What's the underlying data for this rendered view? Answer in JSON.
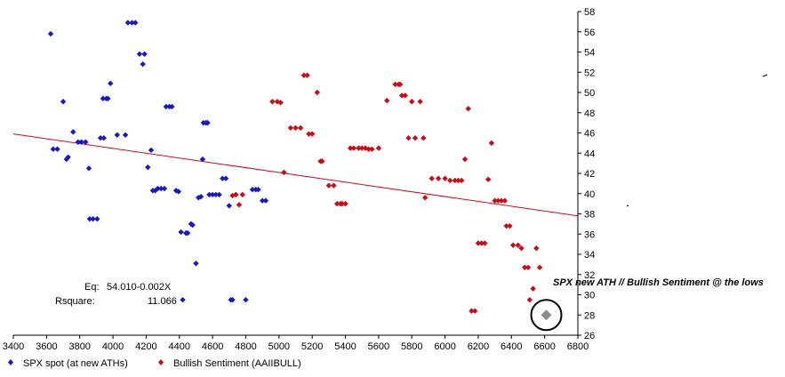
{
  "chart_data": {
    "type": "scatter",
    "x_axis": {
      "min": 3400,
      "max": 6800,
      "step": 200,
      "ticks": [
        "3400",
        "3600",
        "3800",
        "4000",
        "4200",
        "4400",
        "4600",
        "4800",
        "5000",
        "5200",
        "5400",
        "5600",
        "5800",
        "6000",
        "6200",
        "6400",
        "6600",
        "6800"
      ]
    },
    "y_axis": {
      "min": 26,
      "max": 58,
      "step": 2,
      "side": "right",
      "ticks": [
        "26",
        "28",
        "30",
        "32",
        "34",
        "36",
        "38",
        "40",
        "42",
        "44",
        "46",
        "48",
        "50",
        "52",
        "54",
        "56",
        "58"
      ]
    },
    "grid": false,
    "legend_placement": "bottom-left",
    "series": [
      {
        "name": "SPX spot (at new ATHs)",
        "color": "#1a1ab8",
        "marker": "diamond",
        "x": [
          3625,
          3640,
          3665,
          3700,
          3720,
          3730,
          3760,
          3790,
          3810,
          3835,
          3855,
          3860,
          3880,
          3905,
          3925,
          3940,
          3945,
          3960,
          3970,
          3985,
          4025,
          4075,
          4090,
          4115,
          4135,
          4160,
          4180,
          4190,
          4210,
          4230,
          4240,
          4255,
          4270,
          4290,
          4310,
          4320,
          4340,
          4355,
          4380,
          4395,
          4410,
          4420,
          4440,
          4450,
          4470,
          4480,
          4500,
          4515,
          4530,
          4540,
          4545,
          4560,
          4570,
          4580,
          4600,
          4620,
          4640,
          4660,
          4680,
          4700,
          4710,
          4720,
          4740,
          4800,
          4840,
          4860,
          4875,
          4900,
          4920
        ],
        "y": [
          55.8,
          44.4,
          44.4,
          49.1,
          43.4,
          43.6,
          46.1,
          45.1,
          45.1,
          45.1,
          42.5,
          37.5,
          37.5,
          37.5,
          45.5,
          49.4,
          45.5,
          49.4,
          49.4,
          50.9,
          45.8,
          45.8,
          56.9,
          56.9,
          56.9,
          53.8,
          52.8,
          53.8,
          42.6,
          44.3,
          40.3,
          40.3,
          40.5,
          40.5,
          40.5,
          48.6,
          48.6,
          48.6,
          40.3,
          40.2,
          36.2,
          29.5,
          36.1,
          36.1,
          37.0,
          36.9,
          33.1,
          39.6,
          39.7,
          43.4,
          47.0,
          47.0,
          47.0,
          39.9,
          39.9,
          39.9,
          39.9,
          41.5,
          41.5,
          38.8,
          29.5,
          29.5,
          39.9,
          29.5,
          40.4,
          40.4,
          40.4,
          39.3,
          39.3
        ]
      },
      {
        "name": "Bullish Sentiment (AAIIBULL)",
        "color": "#c40f1a",
        "marker": "diamond",
        "x": [
          4720,
          4740,
          4760,
          4780,
          4960,
          4990,
          5010,
          5030,
          5070,
          5100,
          5130,
          5150,
          5170,
          5180,
          5200,
          5230,
          5250,
          5260,
          5300,
          5330,
          5350,
          5370,
          5380,
          5400,
          5430,
          5450,
          5480,
          5500,
          5520,
          5540,
          5560,
          5600,
          5650,
          5700,
          5720,
          5730,
          5740,
          5760,
          5780,
          5800,
          5820,
          5850,
          5870,
          5880,
          5920,
          5960,
          6000,
          6030,
          6060,
          6080,
          6100,
          6120,
          6140,
          6160,
          6180,
          6200,
          6220,
          6240,
          6260,
          6280,
          6300,
          6320,
          6340,
          6360,
          6370,
          6390,
          6410,
          6440,
          6460,
          6480,
          6500,
          6510,
          6530,
          6550,
          6570,
          6600
        ],
        "y": [
          39.8,
          39.9,
          38.9,
          39.9,
          49.1,
          49.1,
          49.0,
          42.1,
          46.5,
          46.5,
          46.5,
          51.7,
          51.7,
          45.9,
          45.9,
          50.0,
          43.2,
          43.2,
          40.8,
          40.8,
          39.0,
          39.0,
          39.0,
          39.0,
          44.5,
          44.5,
          44.5,
          44.5,
          44.5,
          44.4,
          44.4,
          44.5,
          49.2,
          50.8,
          50.8,
          50.8,
          49.7,
          49.7,
          45.5,
          49.1,
          45.5,
          49.1,
          45.5,
          39.6,
          41.5,
          41.5,
          41.5,
          41.3,
          41.3,
          41.3,
          41.3,
          43.4,
          48.4,
          28.4,
          28.4,
          35.1,
          35.1,
          35.1,
          41.4,
          45.0,
          39.3,
          39.3,
          39.3,
          39.3,
          36.8,
          36.8,
          34.9,
          34.9,
          34.6,
          32.7,
          32.7,
          29.5,
          30.6,
          34.6,
          32.7,
          28.0
        ]
      }
    ],
    "highlight_point": {
      "x": 6610,
      "y": 28.0,
      "color": "#8c8c8c"
    },
    "regression": {
      "x": [
        3400,
        6800
      ],
      "y": [
        45.9,
        37.8
      ],
      "color": "#c40f1a"
    },
    "equation": {
      "eq_label": "Eq:",
      "eq_value": "54.010-0.002X",
      "rsq_label": "Rsquare:",
      "rsq_value": "11.066"
    },
    "annotation": "SPX new ATH // Bullish Sentiment @ the lows"
  }
}
